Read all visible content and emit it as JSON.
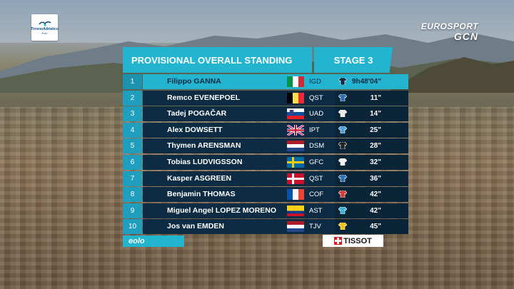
{
  "giro_logo": {
    "line1": "TirrenoAdriatico",
    "line2": "Eolo"
  },
  "broadcaster": {
    "line1": "EUROSPORT",
    "line2": "GCN"
  },
  "header": {
    "title": "PROVISIONAL OVERALL STANDING",
    "stage": "STAGE 3"
  },
  "standings": [
    {
      "pos": "1",
      "name": "Filippo GANNA",
      "flag": "italy",
      "team": "IGD",
      "jersey_color": "#0d2c44",
      "time": "9h48'04\""
    },
    {
      "pos": "2",
      "name": "Remco EVENEPOEL",
      "flag": "belgium",
      "team": "QST",
      "jersey_color": "#2d6fb0",
      "time": "11\""
    },
    {
      "pos": "3",
      "name": "Tadej POGAČAR",
      "flag": "slovenia",
      "team": "UAD",
      "jersey_color": "#e8e8e8",
      "time": "14\""
    },
    {
      "pos": "4",
      "name": "Alex DOWSETT",
      "flag": "uk",
      "team": "IPT",
      "jersey_color": "#4aa3d8",
      "time": "25\""
    },
    {
      "pos": "5",
      "name": "Thymen ARENSMAN",
      "flag": "netherlands",
      "team": "DSM",
      "jersey_color": "#222222",
      "time": "28\""
    },
    {
      "pos": "6",
      "name": "Tobias LUDVIGSSON",
      "flag": "sweden",
      "team": "GFC",
      "jersey_color": "#f2f2f2",
      "time": "32\""
    },
    {
      "pos": "7",
      "name": "Kasper ASGREEN",
      "flag": "denmark",
      "team": "QST",
      "jersey_color": "#2d6fb0",
      "time": "36\""
    },
    {
      "pos": "8",
      "name": "Benjamin THOMAS",
      "flag": "france",
      "team": "COF",
      "jersey_color": "#d33a3a",
      "time": "42\""
    },
    {
      "pos": "9",
      "name": "Miguel Angel LOPEZ MORENO",
      "flag": "colombia",
      "team": "AST",
      "jersey_color": "#38b3d6",
      "time": "42\""
    },
    {
      "pos": "10",
      "name": "Jos van EMDEN",
      "flag": "netherlands",
      "team": "TJV",
      "jersey_color": "#f2c200",
      "time": "45\""
    }
  ],
  "sponsors": {
    "left": "eolo",
    "right": "TISSOT"
  },
  "colors": {
    "accent": "#23b4d0",
    "row_bg": "#0d2c44",
    "position_bg": "#1f9fbd"
  }
}
